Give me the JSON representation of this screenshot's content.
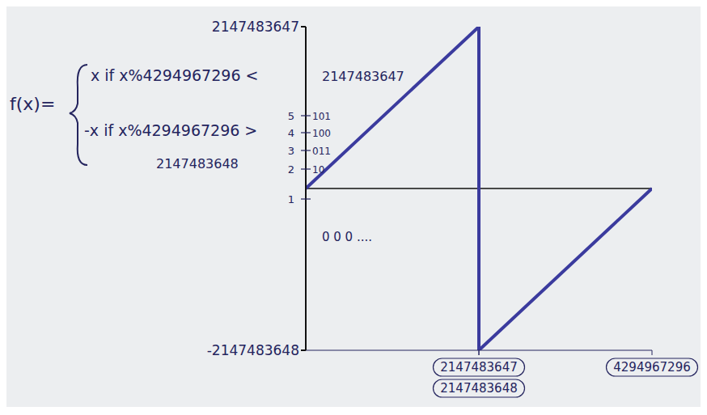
{
  "chart_data": {
    "type": "line",
    "x": [
      0,
      2147483647,
      2147483647,
      2147483648,
      2147483648,
      4294967296
    ],
    "values": [
      0,
      2147483647,
      0,
      0,
      -2147483648,
      0
    ],
    "color": "#3b3b9e",
    "marker": "none",
    "line_style": "solid",
    "xlim": [
      0,
      4294967296
    ],
    "ylim": [
      -2147483648,
      2147483647
    ],
    "xticks": [
      2147483647,
      2147483648,
      4294967296
    ],
    "yticks": [
      -2147483648,
      2147483647
    ],
    "grid": false,
    "annotations": {
      "function_name": "f(x)=",
      "cases": [
        "x if x%4294967296 <",
        "-x if x%4294967296 >"
      ],
      "case_bounds": [
        "2147483647",
        "2147483648"
      ],
      "small_ticks": [
        {
          "number": "1"
        },
        {
          "number": "2",
          "binary": "10"
        },
        {
          "number": "3",
          "binary": "011"
        },
        {
          "number": "4",
          "binary": "100"
        },
        {
          "number": "5",
          "binary": "101"
        }
      ],
      "x_origin_label": "0 0 0 ...."
    }
  }
}
